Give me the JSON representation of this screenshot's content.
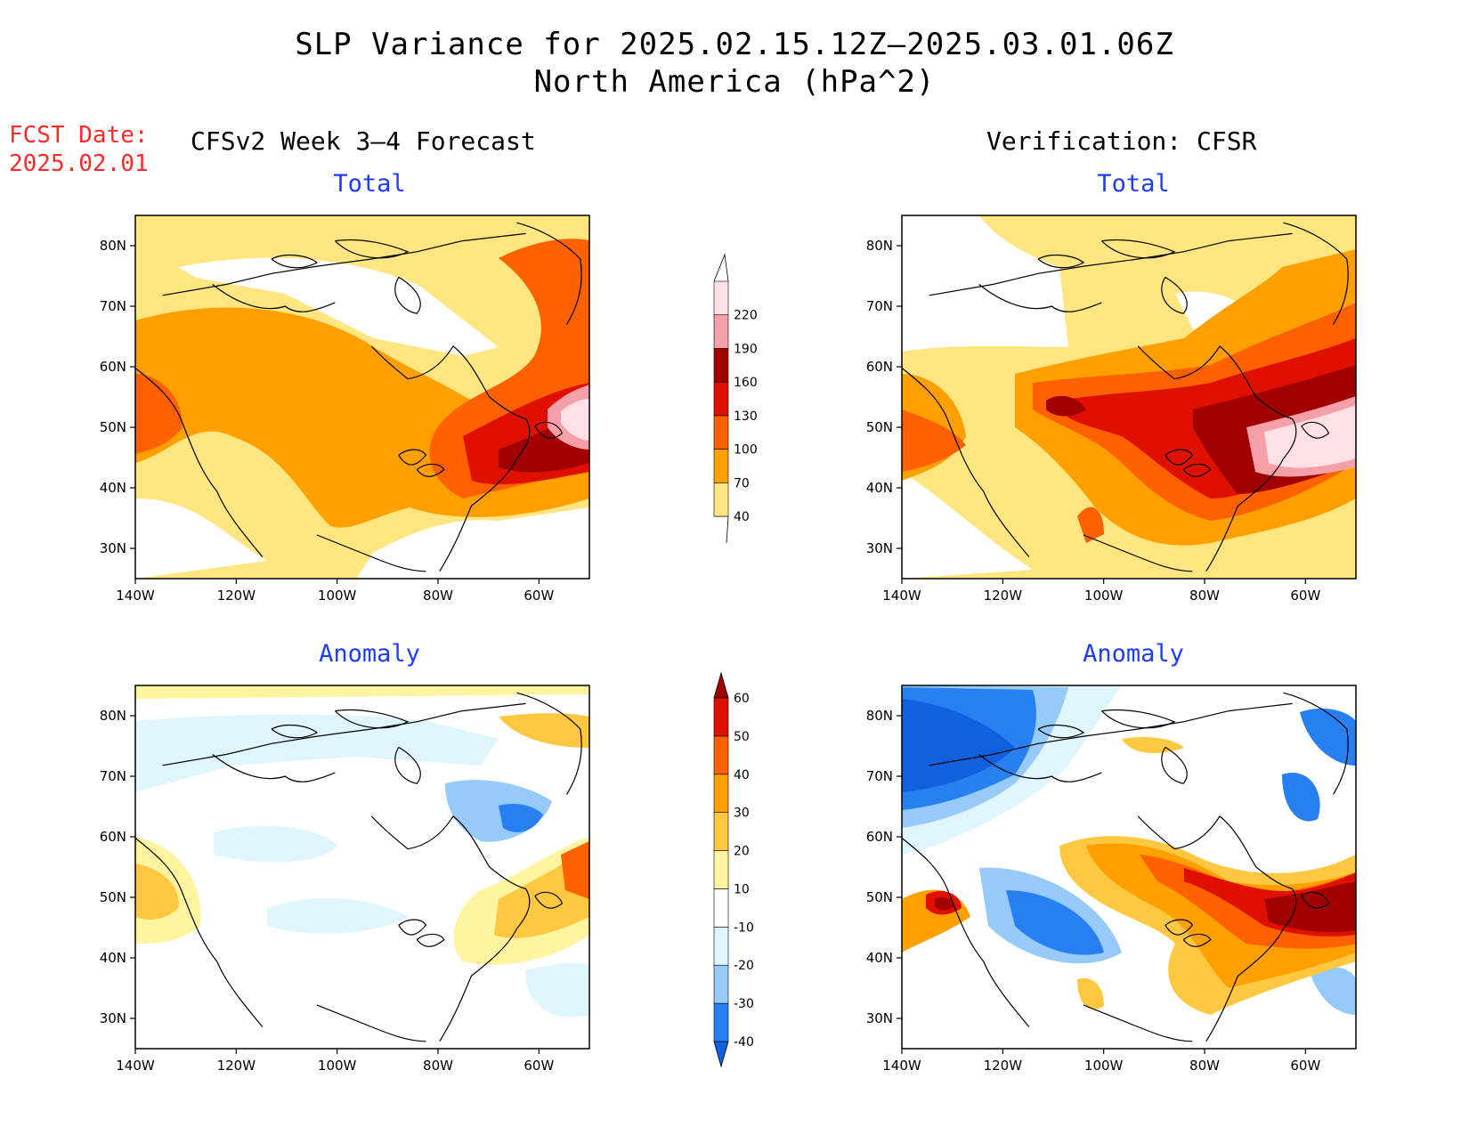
{
  "title": {
    "line1": "SLP Variance for 2025.02.15.12Z–2025.03.01.06Z",
    "line2": "North America (hPa^2)"
  },
  "forecast_date": {
    "label": "FCST Date:",
    "value": "2025.02.01"
  },
  "columns": {
    "left": "CFSv2 Week 3–4 Forecast",
    "right": "Verification: CFSR"
  },
  "panels": {
    "top_left": "Total",
    "top_right": "Total",
    "bottom_left": "Anomaly",
    "bottom_right": "Anomaly"
  },
  "axes": {
    "lon_labels": [
      "140W",
      "120W",
      "100W",
      "80W",
      "60W"
    ],
    "lat_labels": [
      "80N",
      "70N",
      "60N",
      "50N",
      "40N",
      "30N"
    ],
    "lon_range": [
      -140,
      -50
    ],
    "lat_range": [
      25,
      85
    ]
  },
  "colorbars": {
    "total": {
      "levels": [
        "40",
        "70",
        "100",
        "130",
        "160",
        "190",
        "220"
      ],
      "colors": [
        "#ffe680",
        "#ffa000",
        "#ff6000",
        "#e01000",
        "#a00000",
        "#f5a0a8",
        "#ffe0e4"
      ]
    },
    "anomaly": {
      "levels": [
        "-40",
        "-30",
        "-20",
        "-10",
        "10",
        "20",
        "30",
        "40",
        "50",
        "60"
      ],
      "colors": [
        "#1060e0",
        "#2880f0",
        "#96caf8",
        "#dff6ff",
        "#ffffff",
        "#fff4a0",
        "#ffc840",
        "#ffa000",
        "#ff6000",
        "#e01000",
        "#a00000"
      ]
    }
  },
  "chart_data": [
    {
      "type": "heatmap",
      "panel": "CFSv2 Week 3–4 Forecast",
      "title": "Total",
      "field_note": "SLP variance contours; maximum near Newfoundland (>190)",
      "xlim": [
        -140,
        -50
      ],
      "ylim": [
        25,
        85
      ]
    },
    {
      "type": "heatmap",
      "panel": "Verification: CFSR",
      "title": "Total",
      "field_note": "SLP variance contours; maximum near Newfoundland (>190)",
      "xlim": [
        -140,
        -50
      ],
      "ylim": [
        25,
        85
      ]
    },
    {
      "type": "heatmap",
      "panel": "CFSv2 Week 3–4 Forecast",
      "title": "Anomaly",
      "xlim": [
        -140,
        -50
      ],
      "ylim": [
        25,
        85
      ]
    },
    {
      "type": "heatmap",
      "panel": "Verification: CFSR",
      "title": "Anomaly",
      "xlim": [
        -140,
        -50
      ],
      "ylim": [
        25,
        85
      ]
    }
  ]
}
